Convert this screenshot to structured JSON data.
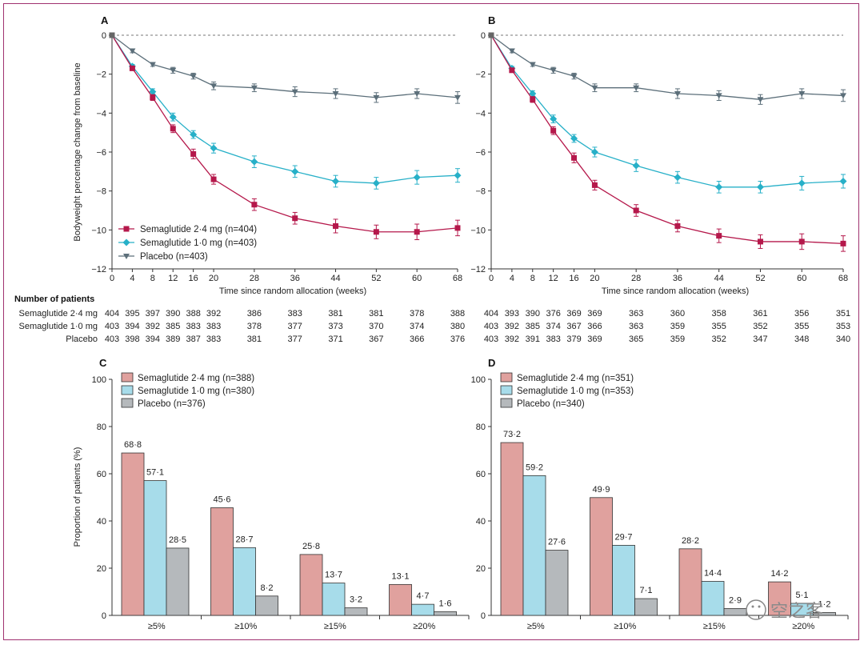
{
  "panels_top": [
    {
      "label": "A"
    },
    {
      "label": "B"
    }
  ],
  "top_y_axis_label": "Bodyweight percentage change from baseline",
  "top_x_axis_label": "Time since random allocation (weeks)",
  "top_legend": [
    "Semaglutide 2·4 mg (n=404)",
    "Semaglutide 1·0 mg (n=403)",
    "Placebo (n=403)"
  ],
  "number_of_patients": {
    "title": "Number of patients",
    "rows": [
      {
        "name": "Semaglutide 2·4 mg",
        "A": [
          "404",
          "395",
          "397",
          "390",
          "388",
          "392",
          "386",
          "383",
          "381",
          "381",
          "378",
          "388"
        ],
        "B": [
          "404",
          "393",
          "390",
          "376",
          "369",
          "369",
          "363",
          "360",
          "358",
          "361",
          "356",
          "351"
        ]
      },
      {
        "name": "Semaglutide 1·0 mg",
        "A": [
          "403",
          "394",
          "392",
          "385",
          "383",
          "383",
          "378",
          "377",
          "373",
          "370",
          "374",
          "380"
        ],
        "B": [
          "403",
          "392",
          "385",
          "374",
          "367",
          "366",
          "363",
          "359",
          "355",
          "352",
          "355",
          "353"
        ]
      },
      {
        "name": "Placebo",
        "A": [
          "403",
          "398",
          "394",
          "389",
          "387",
          "383",
          "381",
          "377",
          "371",
          "367",
          "366",
          "376"
        ],
        "B": [
          "403",
          "392",
          "391",
          "383",
          "379",
          "369",
          "365",
          "359",
          "352",
          "347",
          "348",
          "340"
        ]
      }
    ]
  },
  "panels_bottom": [
    {
      "label": "C",
      "legend": [
        "Semaglutide 2·4 mg (n=388)",
        "Semaglutide 1·0 mg (n=380)",
        "Placebo (n=376)"
      ]
    },
    {
      "label": "D",
      "legend": [
        "Semaglutide 2·4 mg (n=351)",
        "Semaglutide 1·0 mg (n=353)",
        "Placebo (n=340)"
      ]
    }
  ],
  "bottom_y_axis_label": "Proportion of patients (%)",
  "watermark_text": "空之客",
  "colors": {
    "sema24": "#b5184b",
    "sema10": "#27b0c8",
    "placebo": "#5c6f7a",
    "bar24": "#e0a19e",
    "bar10": "#a7dcea",
    "barpl": "#b5b9bc",
    "frame": "#a0316f"
  },
  "chart_data": [
    {
      "type": "line",
      "panel": "A",
      "x": [
        0,
        4,
        8,
        12,
        16,
        20,
        28,
        36,
        44,
        52,
        60,
        68
      ],
      "xlabel": "Time since random allocation (weeks)",
      "ylabel": "Bodyweight percentage change from baseline",
      "ylim": [
        -12,
        0
      ],
      "yticks": [
        0,
        -2,
        -4,
        -6,
        -8,
        -10,
        -12
      ],
      "legend_placement": "bottom-left",
      "series": [
        {
          "name": "Semaglutide 2·4 mg (n=404)",
          "values": [
            0,
            -1.7,
            -3.2,
            -4.8,
            -6.1,
            -7.4,
            -8.7,
            -9.4,
            -9.8,
            -10.1,
            -10.1,
            -9.9
          ],
          "err": [
            0,
            0.1,
            0.15,
            0.2,
            0.25,
            0.25,
            0.3,
            0.3,
            0.35,
            0.35,
            0.4,
            0.4
          ]
        },
        {
          "name": "Semaglutide 1·0 mg (n=403)",
          "values": [
            0,
            -1.6,
            -2.9,
            -4.2,
            -5.1,
            -5.8,
            -6.5,
            -7.0,
            -7.5,
            -7.6,
            -7.3,
            -7.2
          ],
          "err": [
            0,
            0.1,
            0.15,
            0.2,
            0.2,
            0.25,
            0.3,
            0.3,
            0.3,
            0.3,
            0.35,
            0.35
          ]
        },
        {
          "name": "Placebo (n=403)",
          "values": [
            0,
            -0.8,
            -1.5,
            -1.8,
            -2.1,
            -2.6,
            -2.7,
            -2.9,
            -3.0,
            -3.2,
            -3.0,
            -3.2
          ],
          "err": [
            0,
            0.1,
            0.1,
            0.15,
            0.15,
            0.2,
            0.2,
            0.25,
            0.25,
            0.25,
            0.25,
            0.3
          ]
        }
      ]
    },
    {
      "type": "line",
      "panel": "B",
      "x": [
        0,
        4,
        8,
        12,
        16,
        20,
        28,
        36,
        44,
        52,
        60,
        68
      ],
      "xlabel": "Time since random allocation (weeks)",
      "ylabel": "",
      "ylim": [
        -12,
        0
      ],
      "yticks": [
        0,
        -2,
        -4,
        -6,
        -8,
        -10,
        -12
      ],
      "series": [
        {
          "name": "Semaglutide 2·4 mg",
          "values": [
            0,
            -1.8,
            -3.3,
            -4.9,
            -6.3,
            -7.7,
            -9.0,
            -9.8,
            -10.3,
            -10.6,
            -10.6,
            -10.7
          ],
          "err": [
            0,
            0.1,
            0.15,
            0.2,
            0.25,
            0.25,
            0.3,
            0.3,
            0.35,
            0.35,
            0.4,
            0.4
          ]
        },
        {
          "name": "Semaglutide 1·0 mg",
          "values": [
            0,
            -1.7,
            -3.0,
            -4.3,
            -5.3,
            -6.0,
            -6.7,
            -7.3,
            -7.8,
            -7.8,
            -7.6,
            -7.5
          ],
          "err": [
            0,
            0.1,
            0.15,
            0.2,
            0.2,
            0.25,
            0.3,
            0.3,
            0.3,
            0.3,
            0.35,
            0.35
          ]
        },
        {
          "name": "Placebo",
          "values": [
            0,
            -0.8,
            -1.5,
            -1.8,
            -2.1,
            -2.7,
            -2.7,
            -3.0,
            -3.1,
            -3.3,
            -3.0,
            -3.1
          ],
          "err": [
            0,
            0.1,
            0.1,
            0.15,
            0.15,
            0.2,
            0.2,
            0.25,
            0.25,
            0.25,
            0.25,
            0.3
          ]
        }
      ]
    },
    {
      "type": "bar",
      "panel": "C",
      "categories": [
        "≥5%",
        "≥10%",
        "≥15%",
        "≥20%"
      ],
      "ylabel": "Proportion of patients (%)",
      "ylim": [
        0,
        100
      ],
      "yticks": [
        0,
        20,
        40,
        60,
        80,
        100
      ],
      "legend_placement": "top-left",
      "series": [
        {
          "name": "Semaglutide 2·4 mg (n=388)",
          "values": [
            68.8,
            45.6,
            25.8,
            13.1
          ],
          "labels": [
            "68·8",
            "45·6",
            "25·8",
            "13·1"
          ]
        },
        {
          "name": "Semaglutide 1·0 mg (n=380)",
          "values": [
            57.1,
            28.7,
            13.7,
            4.7
          ],
          "labels": [
            "57·1",
            "28·7",
            "13·7",
            "4·7"
          ]
        },
        {
          "name": "Placebo (n=376)",
          "values": [
            28.5,
            8.2,
            3.2,
            1.6
          ],
          "labels": [
            "28·5",
            "8·2",
            "3·2",
            "1·6"
          ]
        }
      ]
    },
    {
      "type": "bar",
      "panel": "D",
      "categories": [
        "≥5%",
        "≥10%",
        "≥15%",
        "≥20%"
      ],
      "ylabel": "",
      "ylim": [
        0,
        100
      ],
      "yticks": [
        0,
        20,
        40,
        60,
        80,
        100
      ],
      "legend_placement": "top-left",
      "series": [
        {
          "name": "Semaglutide 2·4 mg (n=351)",
          "values": [
            73.2,
            49.9,
            28.2,
            14.2
          ],
          "labels": [
            "73·2",
            "49·9",
            "28·2",
            "14·2"
          ]
        },
        {
          "name": "Semaglutide 1·0 mg (n=353)",
          "values": [
            59.2,
            29.7,
            14.4,
            5.1
          ],
          "labels": [
            "59·2",
            "29·7",
            "14·4",
            "5·1"
          ]
        },
        {
          "name": "Placebo (n=340)",
          "values": [
            27.6,
            7.1,
            2.9,
            1.2
          ],
          "labels": [
            "27·6",
            "7·1",
            "2·9",
            "1·2"
          ]
        }
      ]
    }
  ]
}
